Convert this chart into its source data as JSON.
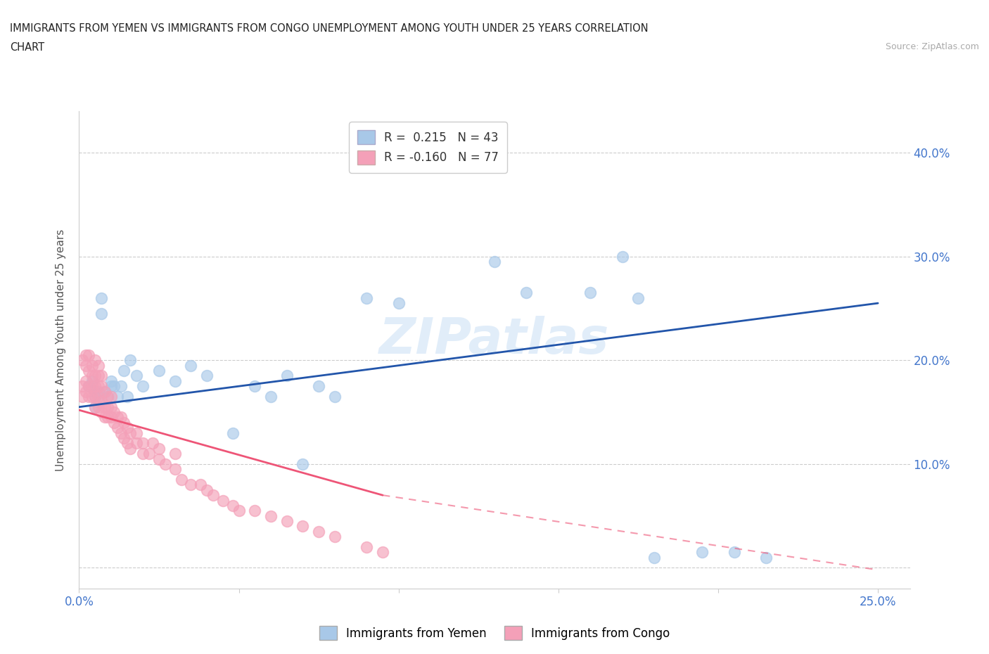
{
  "title_line1": "IMMIGRANTS FROM YEMEN VS IMMIGRANTS FROM CONGO UNEMPLOYMENT AMONG YOUTH UNDER 25 YEARS CORRELATION",
  "title_line2": "CHART",
  "source": "Source: ZipAtlas.com",
  "ylabel": "Unemployment Among Youth under 25 years",
  "xlim": [
    0.0,
    0.26
  ],
  "ylim": [
    -0.02,
    0.44
  ],
  "ytick_positions": [
    0.0,
    0.1,
    0.2,
    0.3,
    0.4
  ],
  "ytick_labels": [
    "",
    "10.0%",
    "20.0%",
    "30.0%",
    "40.0%"
  ],
  "xtick_positions": [
    0.0,
    0.05,
    0.1,
    0.15,
    0.2,
    0.25
  ],
  "xtick_labels": [
    "0.0%",
    "",
    "",
    "",
    "",
    "25.0%"
  ],
  "legend_r_yemen": "R =  0.215",
  "legend_n_yemen": "N = 43",
  "legend_r_congo": "R = -0.160",
  "legend_n_congo": "N = 77",
  "color_yemen": "#A8C8E8",
  "color_congo": "#F4A0B8",
  "trendline_yemen_color": "#2255AA",
  "trendline_congo_color": "#EE5577",
  "watermark": "ZIPatlas",
  "yemen_x": [
    0.003,
    0.004,
    0.005,
    0.005,
    0.005,
    0.006,
    0.006,
    0.007,
    0.007,
    0.008,
    0.009,
    0.01,
    0.01,
    0.011,
    0.012,
    0.013,
    0.014,
    0.015,
    0.016,
    0.018,
    0.02,
    0.025,
    0.03,
    0.035,
    0.04,
    0.048,
    0.055,
    0.06,
    0.065,
    0.07,
    0.075,
    0.08,
    0.09,
    0.1,
    0.13,
    0.14,
    0.16,
    0.17,
    0.175,
    0.18,
    0.195,
    0.205,
    0.215
  ],
  "yemen_y": [
    0.175,
    0.18,
    0.155,
    0.165,
    0.17,
    0.16,
    0.17,
    0.245,
    0.26,
    0.17,
    0.165,
    0.175,
    0.18,
    0.175,
    0.165,
    0.175,
    0.19,
    0.165,
    0.2,
    0.185,
    0.175,
    0.19,
    0.18,
    0.195,
    0.185,
    0.13,
    0.175,
    0.165,
    0.185,
    0.1,
    0.175,
    0.165,
    0.26,
    0.255,
    0.295,
    0.265,
    0.265,
    0.3,
    0.26,
    0.01,
    0.015,
    0.015,
    0.01
  ],
  "congo_x": [
    0.001,
    0.001,
    0.001,
    0.002,
    0.002,
    0.002,
    0.002,
    0.003,
    0.003,
    0.003,
    0.003,
    0.004,
    0.004,
    0.004,
    0.004,
    0.005,
    0.005,
    0.005,
    0.005,
    0.005,
    0.006,
    0.006,
    0.006,
    0.006,
    0.006,
    0.007,
    0.007,
    0.007,
    0.007,
    0.008,
    0.008,
    0.008,
    0.009,
    0.009,
    0.009,
    0.01,
    0.01,
    0.01,
    0.011,
    0.011,
    0.012,
    0.012,
    0.013,
    0.013,
    0.014,
    0.014,
    0.015,
    0.015,
    0.016,
    0.016,
    0.018,
    0.018,
    0.02,
    0.02,
    0.022,
    0.023,
    0.025,
    0.025,
    0.027,
    0.03,
    0.03,
    0.032,
    0.035,
    0.038,
    0.04,
    0.042,
    0.045,
    0.048,
    0.05,
    0.055,
    0.06,
    0.065,
    0.07,
    0.075,
    0.08,
    0.09,
    0.095
  ],
  "congo_y": [
    0.165,
    0.175,
    0.2,
    0.17,
    0.18,
    0.195,
    0.205,
    0.165,
    0.175,
    0.19,
    0.205,
    0.165,
    0.175,
    0.185,
    0.195,
    0.155,
    0.165,
    0.175,
    0.185,
    0.2,
    0.155,
    0.165,
    0.175,
    0.185,
    0.195,
    0.15,
    0.16,
    0.175,
    0.185,
    0.145,
    0.155,
    0.17,
    0.145,
    0.155,
    0.165,
    0.145,
    0.155,
    0.165,
    0.14,
    0.15,
    0.135,
    0.145,
    0.13,
    0.145,
    0.125,
    0.14,
    0.12,
    0.135,
    0.115,
    0.13,
    0.12,
    0.13,
    0.11,
    0.12,
    0.11,
    0.12,
    0.105,
    0.115,
    0.1,
    0.095,
    0.11,
    0.085,
    0.08,
    0.08,
    0.075,
    0.07,
    0.065,
    0.06,
    0.055,
    0.055,
    0.05,
    0.045,
    0.04,
    0.035,
    0.03,
    0.02,
    0.015
  ],
  "trendline_yemen_start_x": 0.0,
  "trendline_yemen_end_x": 0.25,
  "trendline_yemen_start_y": 0.155,
  "trendline_yemen_end_y": 0.255,
  "trendline_congo_solid_start_x": 0.0,
  "trendline_congo_solid_end_x": 0.095,
  "trendline_congo_solid_start_y": 0.152,
  "trendline_congo_solid_end_y": 0.07,
  "trendline_congo_dash_start_x": 0.095,
  "trendline_congo_dash_end_x": 0.25,
  "trendline_congo_dash_start_y": 0.07,
  "trendline_congo_dash_end_y": -0.002
}
